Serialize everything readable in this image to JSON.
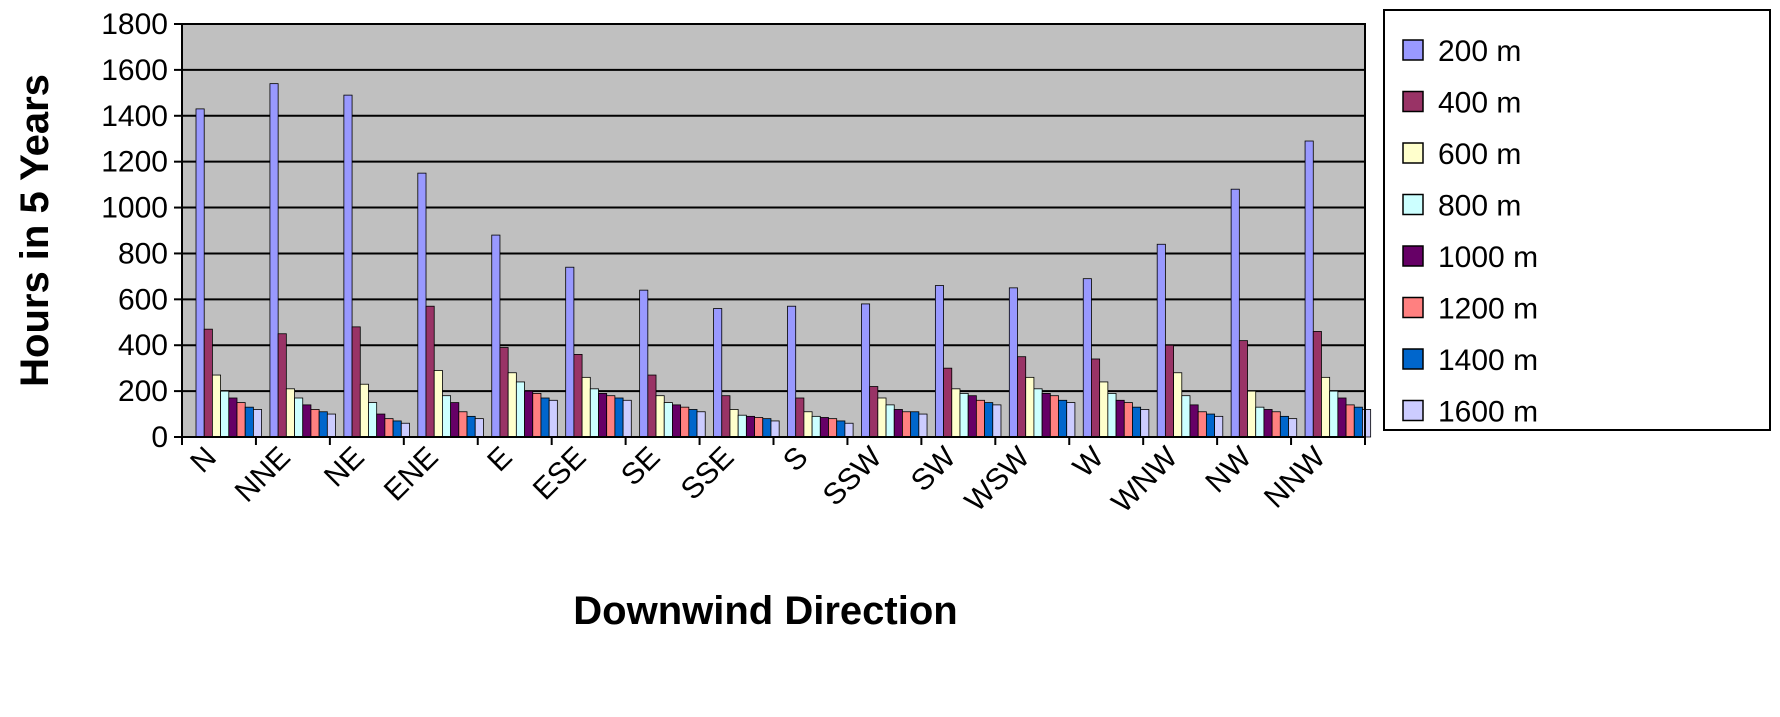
{
  "chart_data": {
    "type": "bar",
    "title": "",
    "xlabel": "Downwind Direction",
    "ylabel": "Hours in 5 Years",
    "ylim": [
      0,
      1800
    ],
    "yticks": [
      0,
      200,
      400,
      600,
      800,
      1000,
      1200,
      1400,
      1600,
      1800
    ],
    "grid": true,
    "legend_position": "right",
    "plot_background": "#c0c0c0",
    "categories": [
      "N",
      "NNE",
      "NE",
      "ENE",
      "E",
      "ESE",
      "SE",
      "SSE",
      "S",
      "SSW",
      "SW",
      "WSW",
      "W",
      "WNW",
      "NW",
      "NNW"
    ],
    "series": [
      {
        "name": "200 m",
        "color": "#9999ff",
        "values": [
          1430,
          1540,
          1490,
          1150,
          880,
          740,
          640,
          560,
          570,
          580,
          660,
          650,
          690,
          840,
          1080,
          1290
        ]
      },
      {
        "name": "400 m",
        "color": "#993366",
        "values": [
          470,
          450,
          480,
          570,
          390,
          360,
          270,
          180,
          170,
          220,
          300,
          350,
          340,
          400,
          420,
          460
        ]
      },
      {
        "name": "600 m",
        "color": "#ffffcc",
        "values": [
          270,
          210,
          230,
          290,
          280,
          260,
          180,
          120,
          110,
          170,
          210,
          260,
          240,
          280,
          200,
          260
        ]
      },
      {
        "name": "800 m",
        "color": "#ccffff",
        "values": [
          200,
          170,
          150,
          180,
          240,
          210,
          150,
          95,
          90,
          140,
          190,
          210,
          190,
          180,
          130,
          200
        ]
      },
      {
        "name": "1000 m",
        "color": "#660066",
        "values": [
          170,
          140,
          100,
          150,
          200,
          190,
          140,
          90,
          85,
          120,
          180,
          190,
          160,
          140,
          120,
          170
        ]
      },
      {
        "name": "1200 m",
        "color": "#ff8080",
        "values": [
          150,
          120,
          80,
          110,
          190,
          180,
          130,
          85,
          80,
          110,
          160,
          180,
          150,
          110,
          110,
          140
        ]
      },
      {
        "name": "1400 m",
        "color": "#0066cc",
        "values": [
          130,
          110,
          70,
          90,
          170,
          170,
          120,
          80,
          70,
          110,
          150,
          160,
          130,
          100,
          90,
          130
        ]
      },
      {
        "name": "1600 m",
        "color": "#ccccff",
        "values": [
          120,
          100,
          60,
          80,
          160,
          160,
          110,
          70,
          60,
          100,
          140,
          150,
          120,
          90,
          80,
          120
        ]
      }
    ]
  }
}
